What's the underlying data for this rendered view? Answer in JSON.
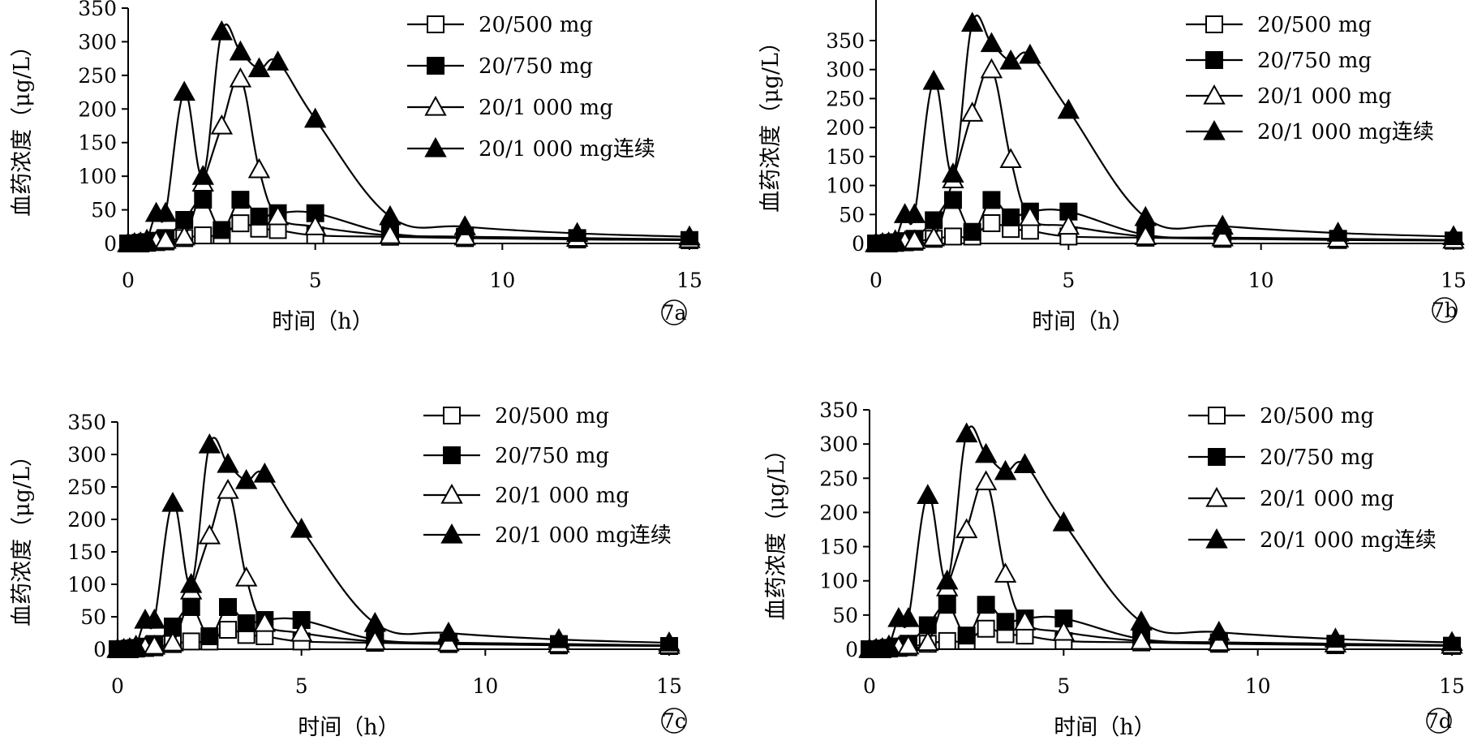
{
  "chart_data": [
    {
      "type": "line",
      "panel_label": "7a",
      "xlabel": "时间（h）",
      "ylabel": "血药浓度（μg/L）",
      "xlim": [
        0,
        15
      ],
      "ylim": [
        0,
        350
      ],
      "xticks": [
        0,
        5,
        10,
        15
      ],
      "yticks": [
        0,
        50,
        100,
        150,
        200,
        250,
        300,
        350
      ],
      "grid": false,
      "legend_position": "top-right",
      "series": [
        {
          "name": "20/500 mg",
          "marker": "square-open",
          "x": [
            0,
            0.17,
            0.33,
            0.5,
            0.75,
            1,
            1.5,
            2,
            2.5,
            3,
            3.5,
            4,
            5,
            7,
            9,
            12,
            15
          ],
          "y": [
            0,
            0,
            0,
            1,
            2,
            3,
            8,
            12,
            12,
            30,
            22,
            20,
            12,
            10,
            8,
            6,
            5
          ]
        },
        {
          "name": "20/750 mg",
          "marker": "square-filled",
          "x": [
            0,
            0.17,
            0.33,
            0.5,
            0.75,
            1,
            1.5,
            2,
            2.5,
            3,
            3.5,
            4,
            5,
            7,
            9,
            12,
            15
          ],
          "y": [
            0,
            0,
            1,
            2,
            4,
            8,
            35,
            65,
            20,
            65,
            40,
            45,
            45,
            15,
            10,
            8,
            5
          ]
        },
        {
          "name": "20/1 000 mg",
          "marker": "triangle-open",
          "x": [
            0,
            0.17,
            0.33,
            0.5,
            0.75,
            1,
            1.5,
            2,
            2.5,
            3,
            3.5,
            4,
            5,
            7,
            9,
            12,
            15
          ],
          "y": [
            0,
            0,
            1,
            2,
            3,
            5,
            10,
            90,
            175,
            245,
            110,
            40,
            25,
            12,
            10,
            8,
            6
          ]
        },
        {
          "name": "20/1 000 mg连续",
          "marker": "triangle-filled",
          "x": [
            0,
            0.17,
            0.33,
            0.5,
            0.75,
            1,
            1.5,
            2,
            2.5,
            3,
            3.5,
            4,
            5,
            7,
            9,
            12,
            15
          ],
          "y": [
            0,
            0,
            1,
            5,
            45,
            45,
            225,
            100,
            315,
            285,
            260,
            270,
            185,
            40,
            25,
            15,
            10
          ]
        }
      ]
    },
    {
      "type": "line",
      "panel_label": "7b",
      "xlabel": "时间（h）",
      "ylabel": "血药浓度（μg/L）",
      "xlim": [
        0,
        15
      ],
      "ylim": [
        0,
        420
      ],
      "xticks": [
        0,
        5,
        10,
        15
      ],
      "yticks": [
        0,
        50,
        100,
        150,
        200,
        250,
        300,
        350
      ],
      "grid": false,
      "legend_position": "top-right",
      "series": [
        {
          "name": "20/500 mg",
          "marker": "square-open",
          "x": [
            0,
            0.17,
            0.33,
            0.5,
            0.75,
            1,
            1.5,
            2,
            2.5,
            3,
            3.5,
            4,
            5,
            7,
            9,
            12,
            15
          ],
          "y": [
            0,
            0,
            0,
            1,
            2,
            3,
            8,
            12,
            12,
            35,
            25,
            22,
            12,
            10,
            8,
            6,
            5
          ]
        },
        {
          "name": "20/750 mg",
          "marker": "square-filled",
          "x": [
            0,
            0.17,
            0.33,
            0.5,
            0.75,
            1,
            1.5,
            2,
            2.5,
            3,
            3.5,
            4,
            5,
            7,
            9,
            12,
            15
          ],
          "y": [
            0,
            0,
            1,
            2,
            4,
            8,
            40,
            75,
            20,
            75,
            45,
            55,
            55,
            15,
            10,
            8,
            5
          ]
        },
        {
          "name": "20/1 000 mg",
          "marker": "triangle-open",
          "x": [
            0,
            0.17,
            0.33,
            0.5,
            0.75,
            1,
            1.5,
            2,
            2.5,
            3,
            3.5,
            4,
            5,
            7,
            9,
            12,
            15
          ],
          "y": [
            0,
            0,
            1,
            2,
            3,
            5,
            10,
            110,
            225,
            300,
            145,
            45,
            30,
            12,
            10,
            8,
            6
          ]
        },
        {
          "name": "20/1 000 mg连续",
          "marker": "triangle-filled",
          "x": [
            0,
            0.17,
            0.33,
            0.5,
            0.75,
            1,
            1.5,
            2,
            2.5,
            3,
            3.5,
            4,
            5,
            7,
            9,
            12,
            15
          ],
          "y": [
            0,
            0,
            1,
            5,
            50,
            50,
            280,
            120,
            380,
            345,
            315,
            325,
            230,
            45,
            30,
            18,
            12
          ]
        }
      ]
    },
    {
      "type": "line",
      "panel_label": "7c",
      "xlabel": "时间（h）",
      "ylabel": "血药浓度（μg/L）",
      "xlim": [
        0,
        15
      ],
      "ylim": [
        0,
        350
      ],
      "xticks": [
        0,
        5,
        10,
        15
      ],
      "yticks": [
        0,
        50,
        100,
        150,
        200,
        250,
        300,
        350
      ],
      "grid": false,
      "legend_position": "top-right",
      "series": [
        {
          "name": "20/500 mg",
          "marker": "square-open",
          "x": [
            0,
            0.17,
            0.33,
            0.5,
            0.75,
            1,
            1.5,
            2,
            2.5,
            3,
            3.5,
            4,
            5,
            7,
            9,
            12,
            15
          ],
          "y": [
            0,
            0,
            0,
            1,
            2,
            3,
            8,
            12,
            12,
            30,
            22,
            20,
            12,
            10,
            8,
            6,
            5
          ]
        },
        {
          "name": "20/750 mg",
          "marker": "square-filled",
          "x": [
            0,
            0.17,
            0.33,
            0.5,
            0.75,
            1,
            1.5,
            2,
            2.5,
            3,
            3.5,
            4,
            5,
            7,
            9,
            12,
            15
          ],
          "y": [
            0,
            0,
            1,
            2,
            4,
            8,
            35,
            65,
            20,
            65,
            40,
            45,
            45,
            15,
            10,
            8,
            5
          ]
        },
        {
          "name": "20/1 000 mg",
          "marker": "triangle-open",
          "x": [
            0,
            0.17,
            0.33,
            0.5,
            0.75,
            1,
            1.5,
            2,
            2.5,
            3,
            3.5,
            4,
            5,
            7,
            9,
            12,
            15
          ],
          "y": [
            0,
            0,
            1,
            2,
            3,
            5,
            10,
            90,
            175,
            245,
            110,
            40,
            25,
            12,
            10,
            8,
            6
          ]
        },
        {
          "name": "20/1 000 mg连续",
          "marker": "triangle-filled",
          "x": [
            0,
            0.17,
            0.33,
            0.5,
            0.75,
            1,
            1.5,
            2,
            2.5,
            3,
            3.5,
            4,
            5,
            7,
            9,
            12,
            15
          ],
          "y": [
            0,
            0,
            1,
            5,
            45,
            45,
            225,
            100,
            315,
            285,
            260,
            270,
            185,
            40,
            25,
            15,
            10
          ]
        }
      ]
    },
    {
      "type": "line",
      "panel_label": "7d",
      "xlabel": "时间（h）",
      "ylabel": "血药浓度（μg/L）",
      "xlim": [
        0,
        15
      ],
      "ylim": [
        0,
        350
      ],
      "xticks": [
        0,
        5,
        10,
        15
      ],
      "yticks": [
        0,
        50,
        100,
        150,
        200,
        250,
        300,
        350
      ],
      "grid": false,
      "legend_position": "top-right",
      "series": [
        {
          "name": "20/500 mg",
          "marker": "square-open",
          "x": [
            0,
            0.17,
            0.33,
            0.5,
            0.75,
            1,
            1.5,
            2,
            2.5,
            3,
            3.5,
            4,
            5,
            7,
            9,
            12,
            15
          ],
          "y": [
            0,
            0,
            0,
            1,
            2,
            3,
            8,
            12,
            12,
            30,
            22,
            20,
            12,
            10,
            8,
            6,
            5
          ]
        },
        {
          "name": "20/750 mg",
          "marker": "square-filled",
          "x": [
            0,
            0.17,
            0.33,
            0.5,
            0.75,
            1,
            1.5,
            2,
            2.5,
            3,
            3.5,
            4,
            5,
            7,
            9,
            12,
            15
          ],
          "y": [
            0,
            0,
            1,
            2,
            4,
            8,
            35,
            65,
            20,
            65,
            40,
            45,
            45,
            15,
            10,
            8,
            5
          ]
        },
        {
          "name": "20/1 000 mg",
          "marker": "triangle-open",
          "x": [
            0,
            0.17,
            0.33,
            0.5,
            0.75,
            1,
            1.5,
            2,
            2.5,
            3,
            3.5,
            4,
            5,
            7,
            9,
            12,
            15
          ],
          "y": [
            0,
            0,
            1,
            2,
            3,
            5,
            10,
            90,
            175,
            245,
            110,
            40,
            25,
            12,
            10,
            8,
            6
          ]
        },
        {
          "name": "20/1 000 mg连续",
          "marker": "triangle-filled",
          "x": [
            0,
            0.17,
            0.33,
            0.5,
            0.75,
            1,
            1.5,
            2,
            2.5,
            3,
            3.5,
            4,
            5,
            7,
            9,
            12,
            15
          ],
          "y": [
            0,
            0,
            1,
            5,
            45,
            45,
            225,
            100,
            315,
            285,
            260,
            270,
            185,
            40,
            25,
            15,
            10
          ]
        }
      ]
    }
  ]
}
